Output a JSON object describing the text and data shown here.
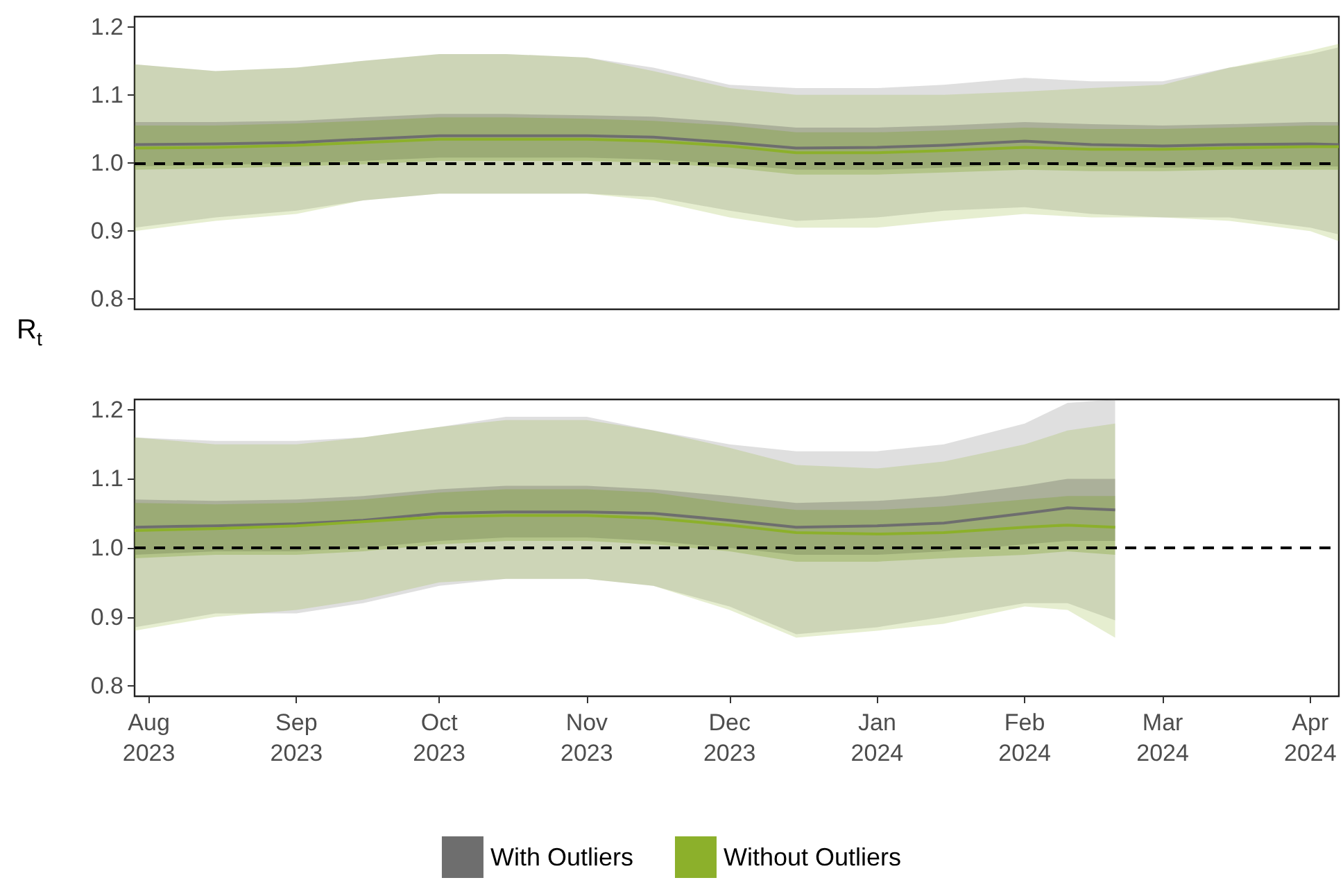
{
  "chart_data": [
    {
      "type": "line",
      "ylabel": "R$_{t}$",
      "xlim": [
        "2023-07-29",
        "2024-04-07"
      ],
      "ylim": [
        0.785,
        1.215
      ],
      "yticks": [
        {
          "value": 0.8,
          "label": "0.8"
        },
        {
          "value": 0.9,
          "label": "0.9"
        },
        {
          "value": 1,
          "label": "1.0"
        },
        {
          "value": 1.1,
          "label": "1.1"
        },
        {
          "value": 1.2,
          "label": "1.2"
        }
      ],
      "tick_labels": "y",
      "grid": false,
      "legend": false,
      "marker": "none",
      "line_style": "solid",
      "x": [
        "2023-07-29",
        "2023-08-15",
        "2023-09-01",
        "2023-09-15",
        "2023-10-01",
        "2023-10-15",
        "2023-11-01",
        "2023-11-15",
        "2023-12-01",
        "2023-12-15",
        "2024-01-01",
        "2024-01-15",
        "2024-02-01",
        "2024-02-15",
        "2024-03-01",
        "2024-03-15",
        "2024-04-01",
        "2024-04-07"
      ],
      "ref_lines": [
        {
          "axis": "y",
          "value": 1,
          "label": null,
          "color": "#000000",
          "line_style": "dashed"
        }
      ],
      "series": [
        {
          "color": "#6e6e6e",
          "values": [
            1.027,
            1.028,
            1.03,
            1.035,
            1.04,
            1.04,
            1.04,
            1.038,
            1.03,
            1.022,
            1.023,
            1.026,
            1.032,
            1.027,
            1.025,
            1.027,
            1.028,
            1.027
          ],
          "lower": [
            0.905,
            0.92,
            0.93,
            0.945,
            0.955,
            0.955,
            0.955,
            0.95,
            0.93,
            0.915,
            0.92,
            0.93,
            0.935,
            0.925,
            0.92,
            0.92,
            0.905,
            0.895
          ],
          "upper": [
            1.145,
            1.135,
            1.14,
            1.15,
            1.16,
            1.16,
            1.155,
            1.14,
            1.115,
            1.11,
            1.11,
            1.115,
            1.125,
            1.12,
            1.12,
            1.14,
            1.16,
            1.17
          ]
        },
        {
          "color": "#8cb02b",
          "values": [
            1.022,
            1.023,
            1.026,
            1.03,
            1.035,
            1.035,
            1.035,
            1.032,
            1.025,
            1.015,
            1.015,
            1.018,
            1.023,
            1.02,
            1.02,
            1.022,
            1.024,
            1.024
          ],
          "lower": [
            0.9,
            0.915,
            0.925,
            0.945,
            0.955,
            0.955,
            0.955,
            0.945,
            0.92,
            0.905,
            0.905,
            0.915,
            0.925,
            0.92,
            0.92,
            0.915,
            0.9,
            0.885
          ],
          "upper": [
            1.145,
            1.135,
            1.14,
            1.15,
            1.16,
            1.16,
            1.155,
            1.135,
            1.11,
            1.1,
            1.1,
            1.1,
            1.105,
            1.11,
            1.115,
            1.14,
            1.165,
            1.175
          ]
        },
        {
          "color": "#5c5c58",
          "values": [
            null,
            null,
            null,
            null,
            null,
            null,
            null,
            null,
            null,
            null,
            null,
            null,
            null,
            null,
            null,
            null,
            null,
            null
          ],
          "lower": [
            0.995,
            0.997,
            1.0,
            1.003,
            1.008,
            1.008,
            1.008,
            1.005,
            0.998,
            0.99,
            0.99,
            0.993,
            0.998,
            0.995,
            0.993,
            0.995,
            0.995,
            0.995
          ],
          "upper": [
            1.06,
            1.06,
            1.062,
            1.067,
            1.072,
            1.072,
            1.07,
            1.068,
            1.06,
            1.052,
            1.052,
            1.055,
            1.06,
            1.057,
            1.055,
            1.057,
            1.06,
            1.06
          ]
        },
        {
          "color": "#78a020",
          "values": [
            null,
            null,
            null,
            null,
            null,
            null,
            null,
            null,
            null,
            null,
            null,
            null,
            null,
            null,
            null,
            null,
            null,
            null
          ],
          "lower": [
            0.99,
            0.992,
            0.995,
            0.998,
            1.003,
            1.003,
            1.003,
            1.0,
            0.993,
            0.983,
            0.983,
            0.986,
            0.99,
            0.988,
            0.988,
            0.99,
            0.99,
            0.99
          ],
          "upper": [
            1.055,
            1.055,
            1.058,
            1.062,
            1.067,
            1.067,
            1.065,
            1.062,
            1.055,
            1.045,
            1.045,
            1.048,
            1.052,
            1.05,
            1.05,
            1.052,
            1.055,
            1.055
          ]
        }
      ]
    },
    {
      "type": "line",
      "xlim": [
        "2023-07-29",
        "2024-04-07"
      ],
      "ylim": [
        0.785,
        1.215
      ],
      "xticks": [
        {
          "value": "2023-08-01",
          "label": "Aug\n2023"
        },
        {
          "value": "2023-09-01",
          "label": "Sep\n2023"
        },
        {
          "value": "2023-10-01",
          "label": "Oct\n2023"
        },
        {
          "value": "2023-11-01",
          "label": "Nov\n2023"
        },
        {
          "value": "2023-12-01",
          "label": "Dec\n2023"
        },
        {
          "value": "2024-01-01",
          "label": "Jan\n2024"
        },
        {
          "value": "2024-02-01",
          "label": "Feb\n2024"
        },
        {
          "value": "2024-03-01",
          "label": "Mar\n2024"
        },
        {
          "value": "2024-04-01",
          "label": "Apr\n2024"
        }
      ],
      "yticks": [
        {
          "value": 0.8,
          "label": "0.8"
        },
        {
          "value": 0.9,
          "label": "0.9"
        },
        {
          "value": 1,
          "label": "1.0"
        },
        {
          "value": 1.1,
          "label": "1.1"
        },
        {
          "value": 1.2,
          "label": "1.2"
        }
      ],
      "grid": false,
      "legend": "bottom",
      "marker": "none",
      "line_style": "solid",
      "x": [
        "2023-07-29",
        "2023-08-15",
        "2023-09-01",
        "2023-09-15",
        "2023-10-01",
        "2023-10-15",
        "2023-11-01",
        "2023-11-15",
        "2023-12-01",
        "2023-12-15",
        "2024-01-01",
        "2024-01-15",
        "2024-02-01",
        "2024-02-10",
        "2024-02-20"
      ],
      "ref_lines": [
        {
          "axis": "y",
          "value": 1,
          "label": null,
          "color": "#000000",
          "line_style": "dashed"
        }
      ],
      "series": [
        {
          "name": "With Outliers",
          "color": "#6e6e6e",
          "values": [
            1.03,
            1.032,
            1.035,
            1.04,
            1.05,
            1.052,
            1.052,
            1.05,
            1.04,
            1.03,
            1.032,
            1.036,
            1.05,
            1.058,
            1.055
          ],
          "lower": [
            0.885,
            0.905,
            0.905,
            0.92,
            0.945,
            0.955,
            0.955,
            0.945,
            0.915,
            0.875,
            0.885,
            0.9,
            0.92,
            0.92,
            0.895
          ],
          "upper": [
            1.16,
            1.155,
            1.155,
            1.16,
            1.175,
            1.19,
            1.19,
            1.17,
            1.15,
            1.14,
            1.14,
            1.15,
            1.18,
            1.21,
            1.215
          ]
        },
        {
          "name": "Without Outliers",
          "color": "#8cb02b",
          "values": [
            1.025,
            1.028,
            1.032,
            1.038,
            1.045,
            1.047,
            1.047,
            1.043,
            1.033,
            1.022,
            1.02,
            1.022,
            1.03,
            1.033,
            1.03
          ],
          "lower": [
            0.88,
            0.9,
            0.91,
            0.925,
            0.95,
            0.955,
            0.955,
            0.945,
            0.91,
            0.87,
            0.88,
            0.89,
            0.915,
            0.91,
            0.87
          ],
          "upper": [
            1.16,
            1.15,
            1.15,
            1.16,
            1.175,
            1.185,
            1.185,
            1.17,
            1.145,
            1.12,
            1.115,
            1.125,
            1.15,
            1.17,
            1.18
          ]
        },
        {
          "color": "#5c5c58",
          "values": [
            null,
            null,
            null,
            null,
            null,
            null,
            null,
            null,
            null,
            null,
            null,
            null,
            null,
            null,
            null
          ],
          "lower": [
            0.99,
            0.995,
            0.995,
            1.0,
            1.01,
            1.015,
            1.015,
            1.01,
            1.0,
            0.99,
            0.99,
            0.995,
            1.005,
            1.01,
            1.01
          ],
          "upper": [
            1.07,
            1.068,
            1.07,
            1.075,
            1.085,
            1.09,
            1.09,
            1.085,
            1.075,
            1.065,
            1.068,
            1.075,
            1.09,
            1.1,
            1.1
          ]
        },
        {
          "color": "#78a020",
          "values": [
            null,
            null,
            null,
            null,
            null,
            null,
            null,
            null,
            null,
            null,
            null,
            null,
            null,
            null,
            null
          ],
          "lower": [
            0.985,
            0.99,
            0.99,
            0.995,
            1.005,
            1.01,
            1.01,
            1.005,
            0.995,
            0.98,
            0.98,
            0.985,
            0.99,
            0.995,
            0.99
          ],
          "upper": [
            1.065,
            1.063,
            1.065,
            1.07,
            1.08,
            1.085,
            1.085,
            1.08,
            1.065,
            1.055,
            1.055,
            1.06,
            1.07,
            1.075,
            1.075
          ]
        }
      ]
    }
  ]
}
